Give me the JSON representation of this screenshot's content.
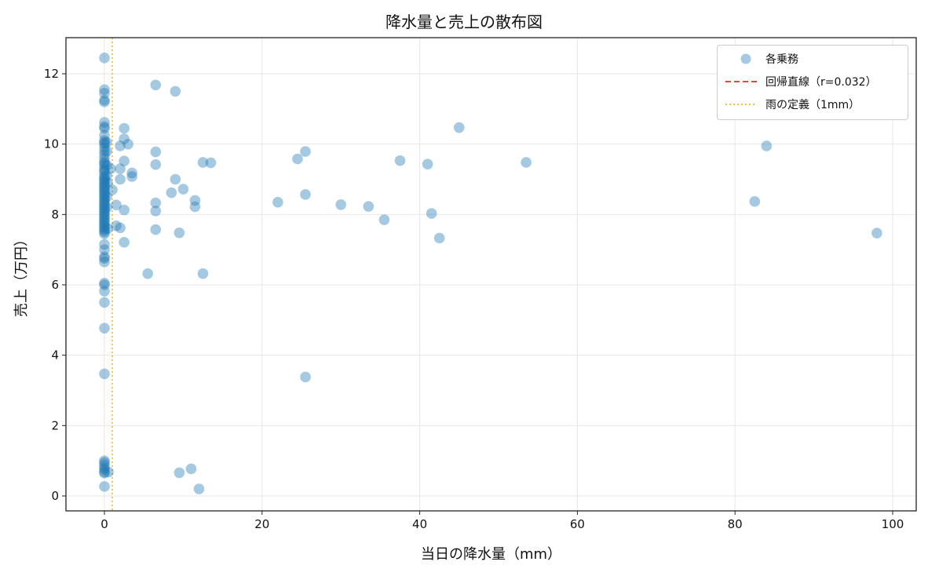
{
  "chart_data": {
    "type": "scatter",
    "title": "降水量と売上の散布図",
    "xlabel": "当日の降水量（mm）",
    "ylabel": "売上（万円）",
    "xlim": [
      -4.9,
      103.5
    ],
    "ylim": [
      -0.42,
      13.0
    ],
    "xticks": [
      0,
      20,
      40,
      60,
      80,
      100
    ],
    "yticks": [
      0,
      2,
      4,
      6,
      8,
      10,
      12
    ],
    "grid": true,
    "legend_position": "upper right",
    "legend": [
      {
        "label": "各乗務",
        "type": "marker",
        "color": "#1f77b4"
      },
      {
        "label": "回帰直線（r=0.032）",
        "type": "dashed-line",
        "color": "#e64545"
      },
      {
        "label": "雨の定義（1mm）",
        "type": "dotted-line",
        "color": "#f5b942"
      }
    ],
    "series": [
      {
        "name": "各乗務",
        "color": "#1f77b4",
        "alpha": 0.4,
        "points": [
          [
            0,
            12.45
          ],
          [
            0,
            11.55
          ],
          [
            0,
            11.45
          ],
          [
            0,
            11.25
          ],
          [
            0,
            11.2
          ],
          [
            0,
            10.62
          ],
          [
            0,
            10.5
          ],
          [
            0,
            10.45
          ],
          [
            0,
            10.25
          ],
          [
            0,
            10.1
          ],
          [
            0,
            10.05
          ],
          [
            0,
            10.0
          ],
          [
            0,
            9.9
          ],
          [
            0,
            9.8
          ],
          [
            0,
            9.7
          ],
          [
            0,
            9.6
          ],
          [
            0,
            9.5
          ],
          [
            0,
            9.45
          ],
          [
            0,
            9.4
          ],
          [
            0,
            9.3
          ],
          [
            0,
            9.25
          ],
          [
            0,
            9.2
          ],
          [
            0,
            9.1
          ],
          [
            0,
            9.05
          ],
          [
            0,
            9.0
          ],
          [
            0,
            8.95
          ],
          [
            0,
            8.9
          ],
          [
            0,
            8.85
          ],
          [
            0,
            8.8
          ],
          [
            0,
            8.75
          ],
          [
            0,
            8.7
          ],
          [
            0,
            8.65
          ],
          [
            0,
            8.6
          ],
          [
            0,
            8.55
          ],
          [
            0,
            8.5
          ],
          [
            0,
            8.45
          ],
          [
            0,
            8.4
          ],
          [
            0,
            8.35
          ],
          [
            0,
            8.3
          ],
          [
            0,
            8.25
          ],
          [
            0,
            8.2
          ],
          [
            0,
            8.15
          ],
          [
            0,
            8.1
          ],
          [
            0,
            8.05
          ],
          [
            0,
            8.0
          ],
          [
            0,
            7.95
          ],
          [
            0,
            7.9
          ],
          [
            0,
            7.85
          ],
          [
            0,
            7.8
          ],
          [
            0,
            7.75
          ],
          [
            0,
            7.7
          ],
          [
            0,
            7.65
          ],
          [
            0,
            7.6
          ],
          [
            0,
            7.55
          ],
          [
            0,
            7.5
          ],
          [
            0,
            7.45
          ],
          [
            0,
            7.15
          ],
          [
            0,
            7.0
          ],
          [
            0,
            6.8
          ],
          [
            0,
            6.75
          ],
          [
            0,
            6.65
          ],
          [
            0,
            6.05
          ],
          [
            0,
            6.0
          ],
          [
            0,
            5.82
          ],
          [
            0,
            5.5
          ],
          [
            0,
            4.77
          ],
          [
            0,
            3.47
          ],
          [
            0,
            1.0
          ],
          [
            0,
            0.95
          ],
          [
            0,
            0.88
          ],
          [
            0,
            0.8
          ],
          [
            0,
            0.75
          ],
          [
            0,
            0.68
          ],
          [
            0,
            0.65
          ],
          [
            0,
            0.27
          ],
          [
            0.3,
            10.05
          ],
          [
            0.3,
            9.8
          ],
          [
            0.3,
            9.4
          ],
          [
            0.3,
            9.1
          ],
          [
            0.4,
            8.9
          ],
          [
            0.3,
            8.5
          ],
          [
            0.3,
            8.2
          ],
          [
            0.4,
            7.6
          ],
          [
            0.5,
            0.68
          ],
          [
            0.8,
            9.3
          ],
          [
            1.0,
            8.7
          ],
          [
            1.5,
            8.27
          ],
          [
            1.5,
            7.68
          ],
          [
            2.0,
            9.95
          ],
          [
            2.0,
            9.3
          ],
          [
            2.0,
            9.0
          ],
          [
            2.0,
            7.62
          ],
          [
            2.5,
            10.45
          ],
          [
            2.5,
            10.15
          ],
          [
            2.5,
            9.52
          ],
          [
            2.5,
            8.13
          ],
          [
            2.5,
            7.21
          ],
          [
            3.0,
            10.0
          ],
          [
            3.5,
            9.18
          ],
          [
            3.5,
            9.08
          ],
          [
            5.5,
            6.32
          ],
          [
            6.5,
            11.68
          ],
          [
            6.5,
            9.78
          ],
          [
            6.5,
            9.42
          ],
          [
            6.5,
            8.33
          ],
          [
            6.5,
            8.1
          ],
          [
            6.5,
            7.57
          ],
          [
            8.5,
            8.62
          ],
          [
            9.0,
            11.5
          ],
          [
            9.0,
            9.0
          ],
          [
            9.5,
            7.48
          ],
          [
            9.5,
            0.66
          ],
          [
            10.0,
            8.72
          ],
          [
            11.0,
            0.77
          ],
          [
            11.5,
            8.4
          ],
          [
            11.5,
            8.22
          ],
          [
            12.0,
            0.2
          ],
          [
            12.5,
            9.48
          ],
          [
            12.5,
            6.32
          ],
          [
            13.5,
            9.47
          ],
          [
            22.0,
            8.35
          ],
          [
            24.5,
            9.58
          ],
          [
            25.5,
            9.79
          ],
          [
            25.5,
            8.57
          ],
          [
            25.5,
            3.38
          ],
          [
            30.0,
            8.28
          ],
          [
            33.5,
            8.23
          ],
          [
            35.5,
            7.85
          ],
          [
            37.5,
            9.53
          ],
          [
            41.0,
            9.43
          ],
          [
            41.5,
            8.03
          ],
          [
            42.5,
            7.33
          ],
          [
            45.0,
            10.47
          ],
          [
            53.5,
            9.48
          ],
          [
            82.5,
            8.37
          ],
          [
            84.0,
            9.95
          ],
          [
            98.0,
            7.47
          ]
        ]
      }
    ],
    "reference_lines": [
      {
        "name": "回帰直線",
        "r": 0.032,
        "style": "dashed",
        "color": "#e64545",
        "visible_in_plot": false
      },
      {
        "name": "雨の定義",
        "x": 1,
        "style": "dotted",
        "color": "#f5b942",
        "orientation": "vertical"
      }
    ]
  }
}
